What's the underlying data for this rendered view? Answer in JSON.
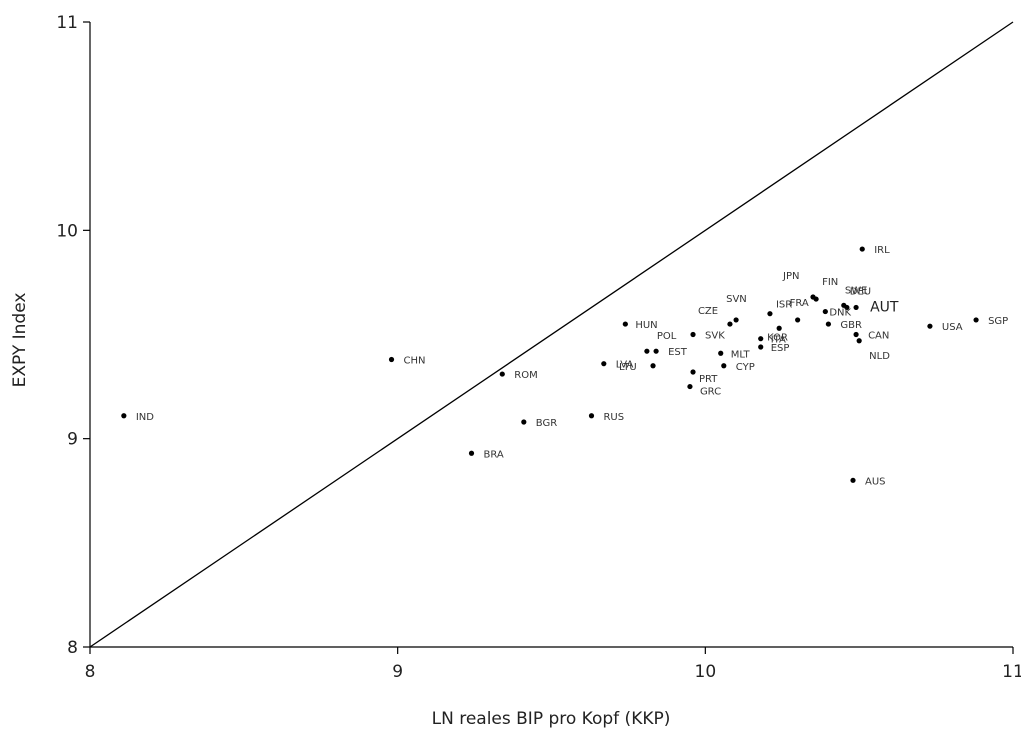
{
  "chart_data": {
    "type": "scatter",
    "title": "",
    "xlabel": "LN reales BIP pro Kopf (KKP)",
    "ylabel": "EXPY Index",
    "xlim": [
      8,
      11
    ],
    "ylim": [
      8,
      11
    ],
    "xticks": [
      "8",
      "9",
      "10",
      "11"
    ],
    "yticks": [
      "8",
      "9",
      "10",
      "11"
    ],
    "reference_line": {
      "from": [
        8,
        8
      ],
      "to": [
        11,
        11
      ]
    },
    "grid": false,
    "points": [
      {
        "label": "IND",
        "x": 8.11,
        "y": 9.11
      },
      {
        "label": "CHN",
        "x": 8.98,
        "y": 9.38
      },
      {
        "label": "ROM",
        "x": 9.34,
        "y": 9.31
      },
      {
        "label": "BRA",
        "x": 9.24,
        "y": 8.93
      },
      {
        "label": "BGR",
        "x": 9.41,
        "y": 9.08
      },
      {
        "label": "RUS",
        "x": 9.63,
        "y": 9.11
      },
      {
        "label": "LVA",
        "x": 9.67,
        "y": 9.36
      },
      {
        "label": "HUN",
        "x": 9.74,
        "y": 9.55
      },
      {
        "label": "POL",
        "x": 9.81,
        "y": 9.42
      },
      {
        "label": "EST",
        "x": 9.84,
        "y": 9.42
      },
      {
        "label": "LTU",
        "x": 9.83,
        "y": 9.35
      },
      {
        "label": "GRC",
        "x": 9.95,
        "y": 9.25
      },
      {
        "label": "PRT",
        "x": 9.96,
        "y": 9.32
      },
      {
        "label": "SVK",
        "x": 9.96,
        "y": 9.5
      },
      {
        "label": "MLT",
        "x": 10.05,
        "y": 9.41
      },
      {
        "label": "CYP",
        "x": 10.06,
        "y": 9.35
      },
      {
        "label": "CZE",
        "x": 10.08,
        "y": 9.55
      },
      {
        "label": "SVN",
        "x": 10.1,
        "y": 9.57
      },
      {
        "label": "ITA",
        "x": 10.18,
        "y": 9.48
      },
      {
        "label": "ESP",
        "x": 10.18,
        "y": 9.44
      },
      {
        "label": "ISR",
        "x": 10.21,
        "y": 9.6
      },
      {
        "label": "KOR",
        "x": 10.24,
        "y": 9.53
      },
      {
        "label": "FRA",
        "x": 10.3,
        "y": 9.57
      },
      {
        "label": "JPN",
        "x": 10.35,
        "y": 9.68
      },
      {
        "label": "FIN",
        "x": 10.36,
        "y": 9.67
      },
      {
        "label": "DNK",
        "x": 10.39,
        "y": 9.61
      },
      {
        "label": "GBR",
        "x": 10.4,
        "y": 9.55
      },
      {
        "label": "DEU",
        "x": 10.45,
        "y": 9.64
      },
      {
        "label": "SWE",
        "x": 10.46,
        "y": 9.63
      },
      {
        "label": "AUT",
        "x": 10.49,
        "y": 9.63
      },
      {
        "label": "CAN",
        "x": 10.49,
        "y": 9.5
      },
      {
        "label": "NLD",
        "x": 10.5,
        "y": 9.47
      },
      {
        "label": "IRL",
        "x": 10.51,
        "y": 9.91
      },
      {
        "label": "AUS",
        "x": 10.48,
        "y": 8.8
      },
      {
        "label": "USA",
        "x": 10.73,
        "y": 9.54
      },
      {
        "label": "SGP",
        "x": 10.88,
        "y": 9.57
      }
    ]
  }
}
